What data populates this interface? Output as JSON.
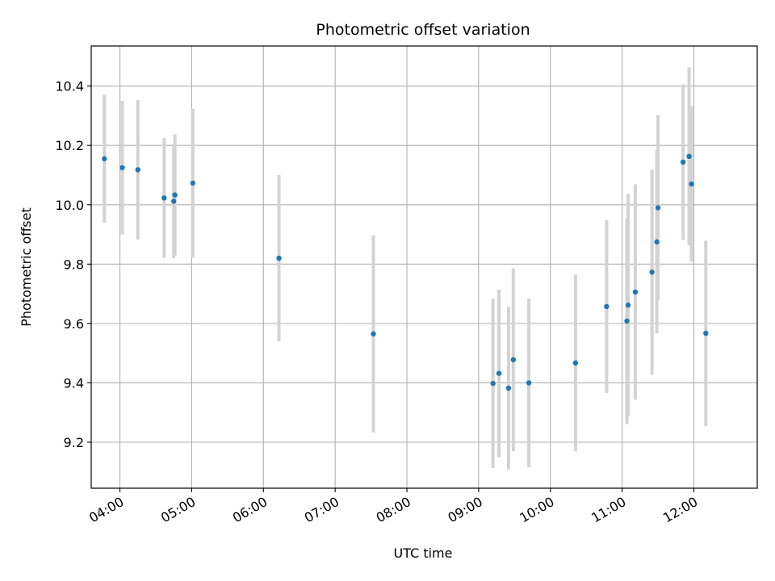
{
  "chart_data": {
    "type": "scatter",
    "title": "Photometric offset variation",
    "xlabel": "UTC time",
    "ylabel": "Photometric offset",
    "x_tick_labels": [
      "04:00",
      "05:00",
      "06:00",
      "07:00",
      "08:00",
      "09:00",
      "10:00",
      "11:00",
      "12:00"
    ],
    "y_tick_labels": [
      "9.2",
      "9.4",
      "9.6",
      "9.8",
      "10.0",
      "10.2",
      "10.4"
    ],
    "xlim": [
      "03:36",
      "12:53"
    ],
    "ylim": [
      9.045,
      10.535
    ],
    "grid": true,
    "colors": {
      "points": "#1f77b4",
      "errorbars": "#d3d3d3",
      "grid": "#b0b0b0"
    },
    "series": [
      {
        "points": [
          {
            "x": "03:47",
            "y": 10.155,
            "yerr": 0.216
          },
          {
            "x": "04:02",
            "y": 10.125,
            "yerr": 0.225
          },
          {
            "x": "04:15",
            "y": 10.118,
            "yerr": 0.235
          },
          {
            "x": "04:37",
            "y": 10.023,
            "yerr": 0.202
          },
          {
            "x": "04:45",
            "y": 10.012,
            "yerr": 0.192
          },
          {
            "x": "04:46",
            "y": 10.033,
            "yerr": 0.204
          },
          {
            "x": "05:01",
            "y": 10.073,
            "yerr": 0.251
          },
          {
            "x": "06:13",
            "y": 9.82,
            "yerr": 0.28
          },
          {
            "x": "07:32",
            "y": 9.565,
            "yerr": 0.332
          },
          {
            "x": "09:12",
            "y": 9.398,
            "yerr": 0.285
          },
          {
            "x": "09:17",
            "y": 9.432,
            "yerr": 0.282
          },
          {
            "x": "09:25",
            "y": 9.382,
            "yerr": 0.274
          },
          {
            "x": "09:29",
            "y": 9.478,
            "yerr": 0.308
          },
          {
            "x": "09:42",
            "y": 9.4,
            "yerr": 0.284
          },
          {
            "x": "10:21",
            "y": 9.467,
            "yerr": 0.298
          },
          {
            "x": "10:47",
            "y": 9.657,
            "yerr": 0.291
          },
          {
            "x": "11:04",
            "y": 9.608,
            "yerr": 0.347
          },
          {
            "x": "11:05",
            "y": 9.662,
            "yerr": 0.375
          },
          {
            "x": "11:11",
            "y": 9.706,
            "yerr": 0.363
          },
          {
            "x": "11:25",
            "y": 9.773,
            "yerr": 0.345
          },
          {
            "x": "11:29",
            "y": 9.875,
            "yerr": 0.308
          },
          {
            "x": "11:30",
            "y": 9.99,
            "yerr": 0.312
          },
          {
            "x": "11:51",
            "y": 10.144,
            "yerr": 0.262
          },
          {
            "x": "11:56",
            "y": 10.163,
            "yerr": 0.3
          },
          {
            "x": "11:58",
            "y": 10.07,
            "yerr": 0.262
          },
          {
            "x": "12:10",
            "y": 9.567,
            "yerr": 0.312
          }
        ]
      }
    ]
  }
}
